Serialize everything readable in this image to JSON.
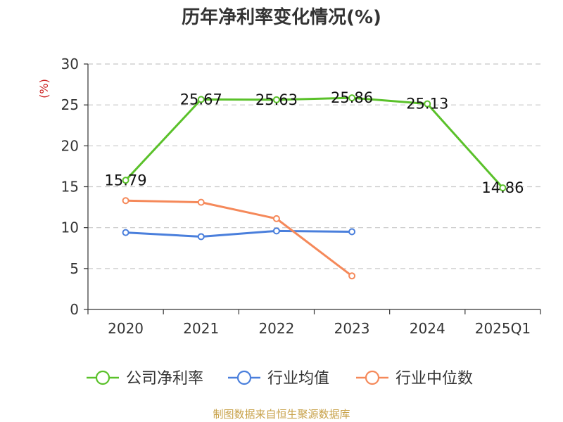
{
  "chart_data": {
    "type": "line",
    "title": "历年净利率变化情况(%)",
    "ylabel": "(%)",
    "xlabel": "",
    "categories": [
      "2020",
      "2021",
      "2022",
      "2023",
      "2024",
      "2025Q1"
    ],
    "ylim": [
      0,
      30
    ],
    "yticks": [
      0,
      5,
      10,
      15,
      20,
      25,
      30
    ],
    "grid": true,
    "legend_position": "bottom",
    "series": [
      {
        "name": "公司净利率",
        "color": "#5ac12a",
        "labeled": true,
        "values": [
          15.79,
          25.67,
          25.63,
          25.86,
          25.13,
          14.86
        ],
        "labels": [
          "15.79",
          "25.67",
          "25.63",
          "25.86",
          "25.13",
          "14.86"
        ]
      },
      {
        "name": "行业均值",
        "color": "#4a7fdc",
        "labeled": false,
        "values": [
          9.4,
          8.9,
          9.6,
          9.5,
          null,
          null
        ]
      },
      {
        "name": "行业中位数",
        "color": "#f5895a",
        "labeled": false,
        "values": [
          13.3,
          13.1,
          11.1,
          4.1,
          null,
          null
        ]
      }
    ]
  },
  "source": "制图数据来自恒生聚源数据库"
}
